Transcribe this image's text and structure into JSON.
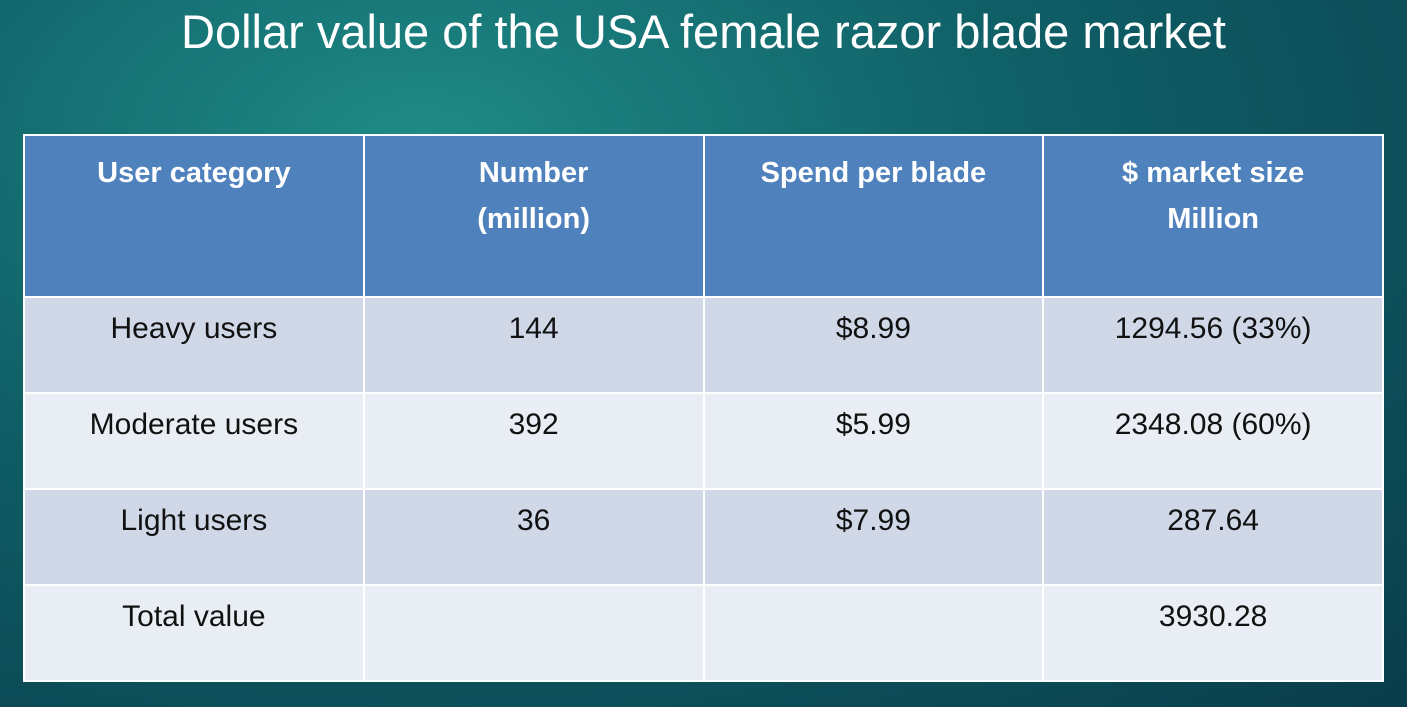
{
  "title": "Dollar value of the USA female razor blade market",
  "table": {
    "header": [
      "User category",
      "Number (million)",
      "Spend per blade",
      "$ market size Million"
    ],
    "rows": [
      {
        "category": "Heavy users",
        "number": "144",
        "spend": "$8.99",
        "market_size": "1294.56 (33%)"
      },
      {
        "category": "Moderate users",
        "number": "392",
        "spend": "$5.99",
        "market_size": "2348.08 (60%)"
      },
      {
        "category": "Light users",
        "number": "36",
        "spend": "$7.99",
        "market_size": "287.64"
      }
    ],
    "total": {
      "label": "Total value",
      "market_size": "3930.28"
    }
  }
}
